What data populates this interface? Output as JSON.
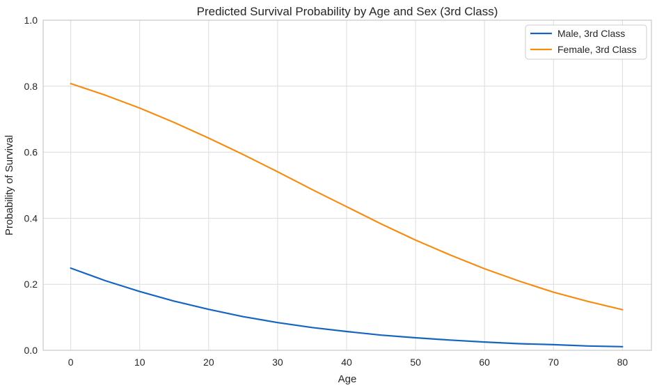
{
  "chart_data": {
    "type": "line",
    "title": "Predicted Survival Probability by Age and Sex (3rd Class)",
    "xlabel": "Age",
    "ylabel": "Probability of Survival",
    "x": [
      0,
      5,
      10,
      15,
      20,
      25,
      30,
      35,
      40,
      45,
      50,
      55,
      60,
      65,
      70,
      75,
      80
    ],
    "series": [
      {
        "name": "Male, 3rd Class",
        "color": "#1565c0",
        "values": [
          0.249,
          0.211,
          0.178,
          0.149,
          0.124,
          0.102,
          0.084,
          0.069,
          0.057,
          0.046,
          0.038,
          0.031,
          0.025,
          0.02,
          0.017,
          0.013,
          0.011
        ]
      },
      {
        "name": "Female, 3rd Class",
        "color": "#f28e11",
        "values": [
          0.808,
          0.773,
          0.734,
          0.69,
          0.643,
          0.593,
          0.541,
          0.487,
          0.435,
          0.383,
          0.334,
          0.289,
          0.247,
          0.21,
          0.176,
          0.148,
          0.123
        ]
      }
    ],
    "xlim": [
      -4,
      84.2
    ],
    "ylim": [
      0,
      1
    ],
    "xticks": [
      0,
      10,
      20,
      30,
      40,
      50,
      60,
      70,
      80
    ],
    "xtick_labels": [
      "0",
      "10",
      "20",
      "30",
      "40",
      "50",
      "60",
      "70",
      "80"
    ],
    "yticks": [
      0,
      0.2,
      0.4,
      0.6,
      0.8,
      1.0
    ],
    "ytick_labels": [
      "0.0",
      "0.2",
      "0.4",
      "0.6",
      "0.8",
      "1.0"
    ],
    "grid": true,
    "legend": {
      "position": "upper right",
      "entries": [
        "Male, 3rd Class",
        "Female, 3rd Class"
      ]
    },
    "colors": {
      "background": "#ffffff",
      "grid": "#dcdcdc",
      "spine": "#c9c9c9",
      "text": "#262626",
      "legend_border": "#cccccc"
    }
  }
}
